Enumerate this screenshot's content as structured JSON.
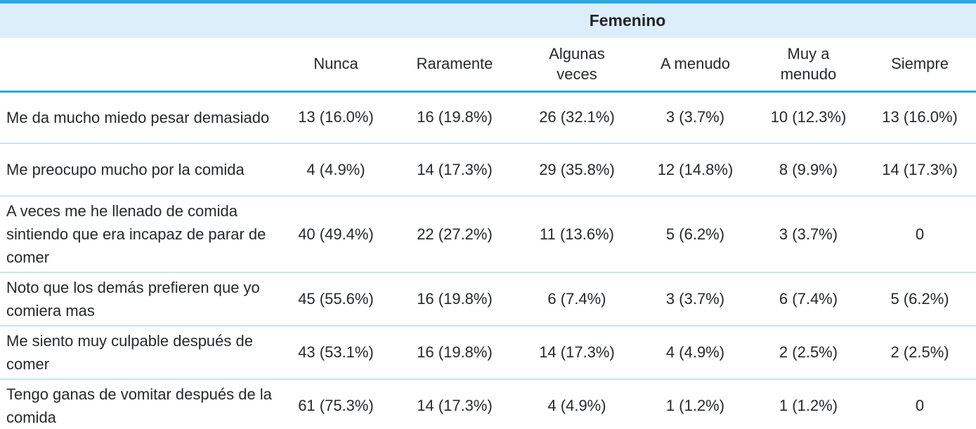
{
  "table": {
    "group_header": "Femenino",
    "columns": [
      "Nunca",
      "Raramente",
      "Algunas\nveces",
      "A menudo",
      "Muy a\nmenudo",
      "Siempre"
    ],
    "rows": [
      {
        "label": "Me da mucho miedo pesar demasiado",
        "values": [
          "13 (16.0%)",
          "16 (19.8%)",
          "26 (32.1%)",
          "3 (3.7%)",
          "10 (12.3%)",
          "13 (16.0%)"
        ]
      },
      {
        "label": "Me preocupo mucho por la comida",
        "values": [
          "4 (4.9%)",
          "14 (17.3%)",
          "29 (35.8%)",
          "12 (14.8%)",
          "8 (9.9%)",
          "14 (17.3%)"
        ]
      },
      {
        "label": "A veces me he llenado de comida sintiendo que era incapaz de parar de comer",
        "values": [
          "40 (49.4%)",
          "22 (27.2%)",
          "11 (13.6%)",
          "5 (6.2%)",
          "3 (3.7%)",
          "0"
        ]
      },
      {
        "label": "Noto que los demás prefieren que yo comiera mas",
        "values": [
          "45 (55.6%)",
          "16 (19.8%)",
          "6 (7.4%)",
          "3 (3.7%)",
          "6 (7.4%)",
          "5 (6.2%)"
        ]
      },
      {
        "label": "Me siento muy culpable después de comer",
        "values": [
          "43 (53.1%)",
          "16 (19.8%)",
          "14 (17.3%)",
          "4 (4.9%)",
          "2 (2.5%)",
          "2 (2.5%)"
        ]
      },
      {
        "label": "Tengo ganas de vomitar después de la comida",
        "values": [
          "61 (75.3%)",
          "14 (17.3%)",
          "4 (4.9%)",
          "1 (1.2%)",
          "1 (1.2%)",
          "0"
        ]
      }
    ],
    "colors": {
      "border_blue": "#29a9e1",
      "band_blue": "#dceef9",
      "separator_blue": "#c9e5f4",
      "text": "#26282c"
    }
  },
  "chart_data": {
    "type": "table",
    "title": "Femenino",
    "categories": [
      "Nunca",
      "Raramente",
      "Algunas veces",
      "A menudo",
      "Muy a menudo",
      "Siempre"
    ],
    "series": [
      {
        "name": "Me da mucho miedo pesar demasiado",
        "values": [
          13,
          16,
          26,
          3,
          10,
          13
        ],
        "percent": [
          16.0,
          19.8,
          32.1,
          3.7,
          12.3,
          16.0
        ]
      },
      {
        "name": "Me preocupo mucho por la comida",
        "values": [
          4,
          14,
          29,
          12,
          8,
          14
        ],
        "percent": [
          4.9,
          17.3,
          35.8,
          14.8,
          9.9,
          17.3
        ]
      },
      {
        "name": "A veces me he llenado de comida sintiendo que era incapaz de parar de comer",
        "values": [
          40,
          22,
          11,
          5,
          3,
          0
        ],
        "percent": [
          49.4,
          27.2,
          13.6,
          6.2,
          3.7,
          0
        ]
      },
      {
        "name": "Noto que los demás prefieren que yo comiera mas",
        "values": [
          45,
          16,
          6,
          3,
          6,
          5
        ],
        "percent": [
          55.6,
          19.8,
          7.4,
          3.7,
          7.4,
          6.2
        ]
      },
      {
        "name": "Me siento muy culpable después de comer",
        "values": [
          43,
          16,
          14,
          4,
          2,
          2
        ],
        "percent": [
          53.1,
          19.8,
          17.3,
          4.9,
          2.5,
          2.5
        ]
      },
      {
        "name": "Tengo ganas de vomitar después de la comida",
        "values": [
          61,
          14,
          4,
          1,
          1,
          0
        ],
        "percent": [
          75.3,
          17.3,
          4.9,
          1.2,
          1.2,
          0
        ]
      }
    ]
  }
}
